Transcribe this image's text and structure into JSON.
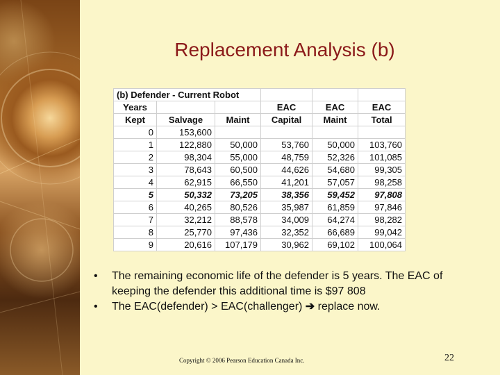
{
  "slide": {
    "title": "Replacement Analysis (b)",
    "copyright": "Copyright © 2006 Pearson Education Canada Inc.",
    "page_number": "22"
  },
  "table": {
    "caption": "(b) Defender - Current Robot",
    "header_row1": [
      "Years",
      "",
      "",
      "EAC",
      "EAC",
      "EAC"
    ],
    "header_row2": [
      "Kept",
      "Salvage",
      "Maint",
      "Capital",
      "Maint",
      "Total"
    ],
    "rows": [
      [
        "0",
        "153,600",
        "",
        "",
        "",
        ""
      ],
      [
        "1",
        "122,880",
        "50,000",
        "53,760",
        "50,000",
        "103,760"
      ],
      [
        "2",
        "98,304",
        "55,000",
        "48,759",
        "52,326",
        "101,085"
      ],
      [
        "3",
        "78,643",
        "60,500",
        "44,626",
        "54,680",
        "99,305"
      ],
      [
        "4",
        "62,915",
        "66,550",
        "41,201",
        "57,057",
        "98,258"
      ],
      [
        "5",
        "50,332",
        "73,205",
        "38,356",
        "59,452",
        "97,808"
      ],
      [
        "6",
        "40,265",
        "80,526",
        "35,987",
        "61,859",
        "97,846"
      ],
      [
        "7",
        "32,212",
        "88,578",
        "34,009",
        "64,274",
        "98,282"
      ],
      [
        "8",
        "25,770",
        "97,436",
        "32,352",
        "66,689",
        "99,042"
      ],
      [
        "9",
        "20,616",
        "107,179",
        "30,962",
        "69,102",
        "100,064"
      ]
    ],
    "highlight_row_index": 5
  },
  "bullets": {
    "marker": "•",
    "item1": "The remaining economic life of the defender is 5 years.  The EAC of keeping the defender this additional time is $97 808",
    "item2_before": "The EAC(defender) > EAC(challenger) ",
    "item2_arrow": "➔",
    "item2_after": " replace now."
  },
  "colors": {
    "title": "#8b1a1a",
    "background": "#fbf6c9"
  }
}
